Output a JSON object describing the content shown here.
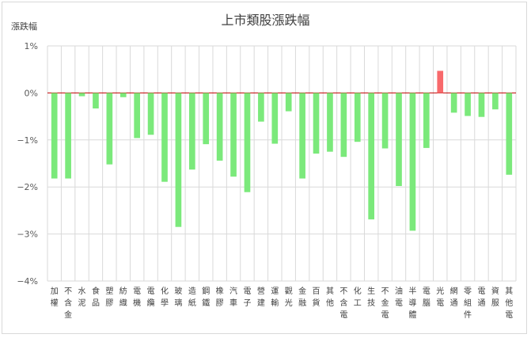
{
  "chart_data": {
    "type": "bar",
    "title": "上市類股漲跌幅",
    "xlabel": "",
    "ylabel": "漲跌幅",
    "ylim": [
      -4,
      1
    ],
    "yticks": [
      "1%",
      "0%",
      "−1%",
      "−2%",
      "−3%",
      "−4%"
    ],
    "grid": true,
    "legend": "none",
    "colors": {
      "positive": "#f8696b",
      "negative": "#7be97b",
      "zero_line": "#c00000",
      "grid": "#d9d9d9"
    },
    "categories": [
      "加權",
      "不含金",
      "水泥",
      "食品",
      "塑膠",
      "紡織",
      "電機",
      "電纜",
      "化學",
      "玻璃",
      "造紙",
      "鋼鐵",
      "橡膠",
      "汽車",
      "電子",
      "營建",
      "運輸",
      "觀光",
      "金融",
      "百貨",
      "其他",
      "不含電",
      "化工",
      "生技",
      "不金電",
      "油電",
      "半導體",
      "電腦",
      "光電",
      "網通",
      "零組件",
      "電通",
      "資服",
      "其他電"
    ],
    "values": [
      -1.82,
      -1.82,
      -0.07,
      -0.33,
      -1.52,
      -0.09,
      -0.96,
      -0.89,
      -1.89,
      -2.85,
      -1.63,
      -1.09,
      -1.44,
      -1.78,
      -2.11,
      -0.61,
      -1.08,
      -0.39,
      -1.82,
      -1.29,
      -1.25,
      -1.36,
      -1.04,
      -2.69,
      -1.18,
      -1.98,
      -2.93,
      -1.17,
      0.47,
      -0.42,
      -0.49,
      -0.51,
      -0.35,
      -1.74
    ]
  }
}
